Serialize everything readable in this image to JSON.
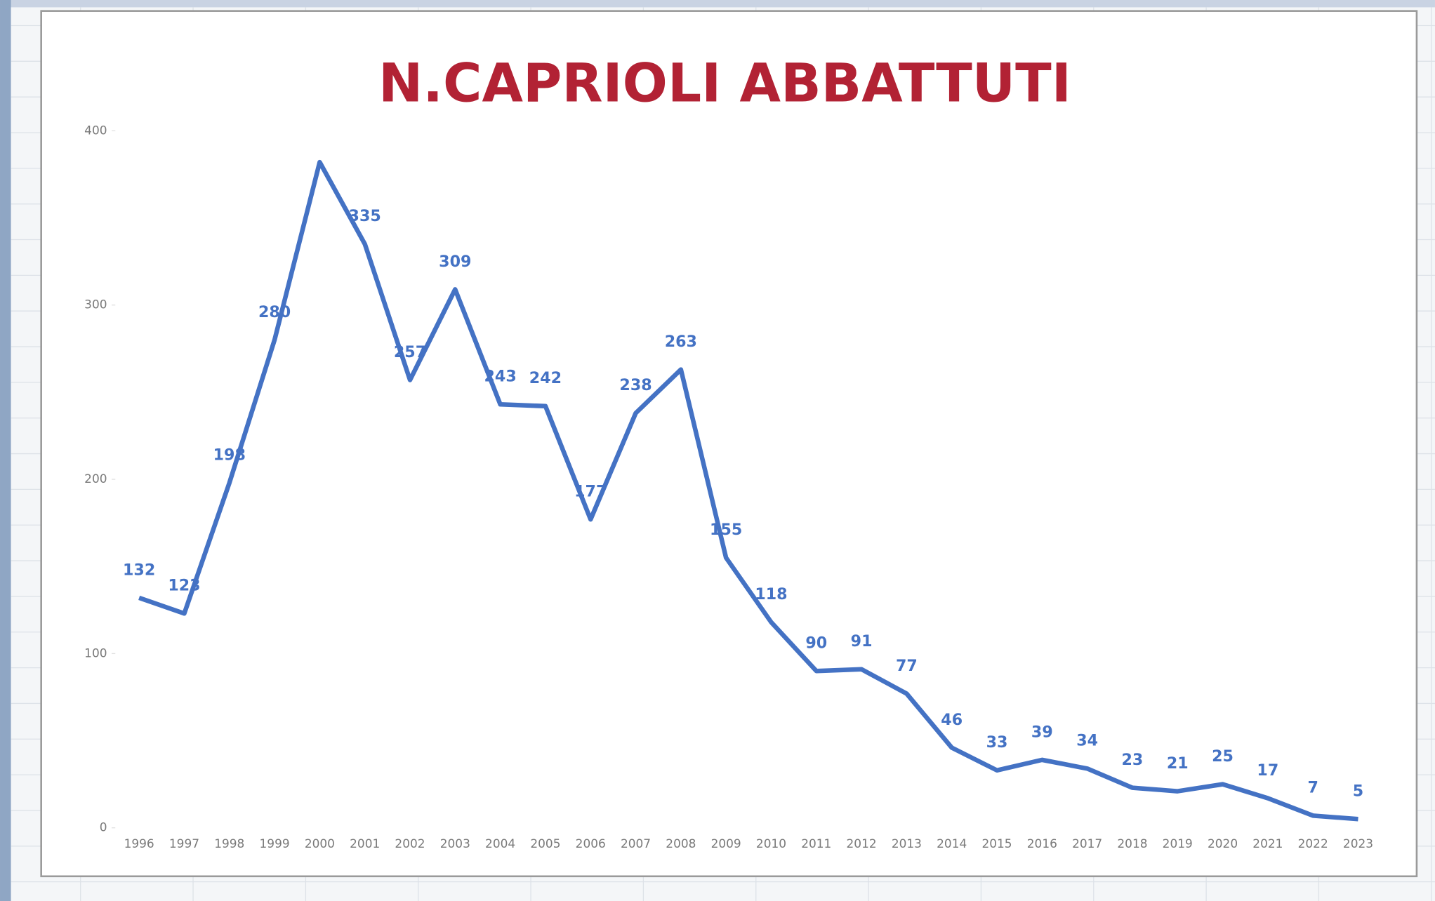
{
  "chart_data": {
    "type": "line",
    "title": "N.CAPRIOLI ABBATTUTI",
    "categories": [
      "1996",
      "1997",
      "1998",
      "1999",
      "2000",
      "2001",
      "2002",
      "2003",
      "2004",
      "2005",
      "2006",
      "2007",
      "2008",
      "2009",
      "2010",
      "2011",
      "2012",
      "2013",
      "2014",
      "2015",
      "2016",
      "2017",
      "2018",
      "2019",
      "2020",
      "2021",
      "2022",
      "2023"
    ],
    "series": [
      {
        "name": "N.CAPRIOLI ABBATTUTI",
        "color": "#4472c4",
        "values": [
          132,
          123,
          198,
          280,
          382,
          335,
          257,
          309,
          243,
          242,
          177,
          238,
          263,
          155,
          118,
          90,
          91,
          77,
          46,
          33,
          39,
          34,
          23,
          21,
          25,
          17,
          7,
          5
        ],
        "value_labels": [
          "132",
          "123",
          "198",
          "280",
          null,
          "335",
          "257",
          "309",
          "243",
          "242",
          "177",
          "238",
          "263",
          "155",
          "118",
          "90",
          "91",
          "77",
          "46",
          "33",
          "39",
          "34",
          "23",
          "21",
          "25",
          "17",
          "7",
          "5"
        ]
      }
    ],
    "ylim": [
      0,
      400
    ],
    "yticks": [
      0,
      100,
      200,
      300,
      400
    ],
    "grid": false
  }
}
